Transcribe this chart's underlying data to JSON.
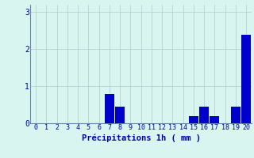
{
  "hours": [
    0,
    1,
    2,
    3,
    4,
    5,
    6,
    7,
    8,
    9,
    10,
    11,
    12,
    13,
    14,
    15,
    16,
    17,
    18,
    19,
    20
  ],
  "values": [
    0,
    0,
    0,
    0,
    0,
    0,
    0,
    0.8,
    0.45,
    0,
    0,
    0,
    0,
    0,
    0,
    0.2,
    0.45,
    0.2,
    0,
    0.45,
    2.4
  ],
  "bar_color": "#0000cc",
  "background_color": "#d8f5f0",
  "grid_color": "#b0cccc",
  "xlabel": "Précipitations 1h ( mm )",
  "xlabel_color": "#0000aa",
  "tick_color": "#0000aa",
  "axis_color": "#6688aa",
  "ylim": [
    0,
    3.2
  ],
  "yticks": [
    0,
    1,
    2,
    3
  ],
  "xlim": [
    -0.5,
    20.5
  ],
  "tick_fontsize": 6.0,
  "xlabel_fontsize": 7.5
}
